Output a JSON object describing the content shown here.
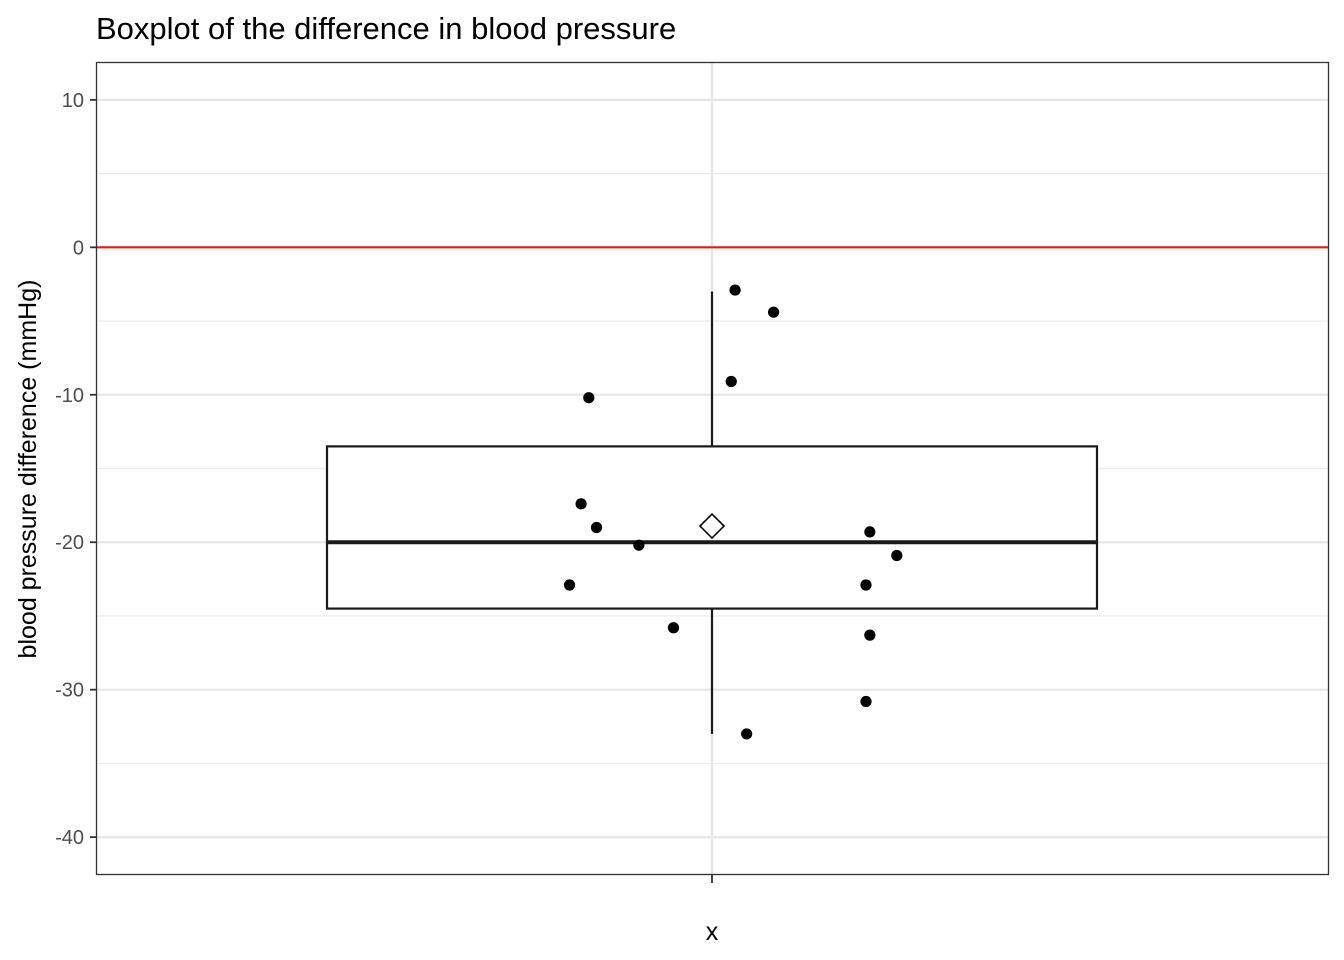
{
  "chart_data": {
    "type": "boxplot",
    "title": "Boxplot of the difference in blood pressure",
    "xlabel": "x",
    "ylabel": "blood pressure difference (mmHg)",
    "categories": [
      ""
    ],
    "ylim": [
      -42.5,
      12.5
    ],
    "y_ticks": [
      10,
      0,
      -10,
      -20,
      -30,
      -40
    ],
    "y_tick_labels": [
      "10",
      "0",
      "-10",
      "-20",
      "-30",
      "-40"
    ],
    "grid": true,
    "reference_line": {
      "y": 0,
      "color": "#e41a1c"
    },
    "box": {
      "whisker_low": -33,
      "q1": -24.5,
      "median": -20,
      "q3": -13.5,
      "whisker_high": -3,
      "mean": -18.9
    },
    "points": [
      {
        "x": 0.06,
        "y": -2.9
      },
      {
        "x": 0.16,
        "y": -4.4
      },
      {
        "x": 0.05,
        "y": -9.1
      },
      {
        "x": -0.32,
        "y": -10.2
      },
      {
        "x": -0.34,
        "y": -17.4
      },
      {
        "x": -0.3,
        "y": -19.0
      },
      {
        "x": -0.19,
        "y": -20.2
      },
      {
        "x": -0.37,
        "y": -22.9
      },
      {
        "x": -0.1,
        "y": -25.8
      },
      {
        "x": 0.41,
        "y": -19.3
      },
      {
        "x": 0.48,
        "y": -20.9
      },
      {
        "x": 0.4,
        "y": -22.9
      },
      {
        "x": 0.41,
        "y": -26.3
      },
      {
        "x": 0.4,
        "y": -30.8
      },
      {
        "x": 0.09,
        "y": -33.0
      }
    ],
    "colors": {
      "points": "#000000",
      "box": "#1a1a1a",
      "mean_marker_fill": "#ffffff",
      "reference_line": "#e41a1c"
    }
  }
}
